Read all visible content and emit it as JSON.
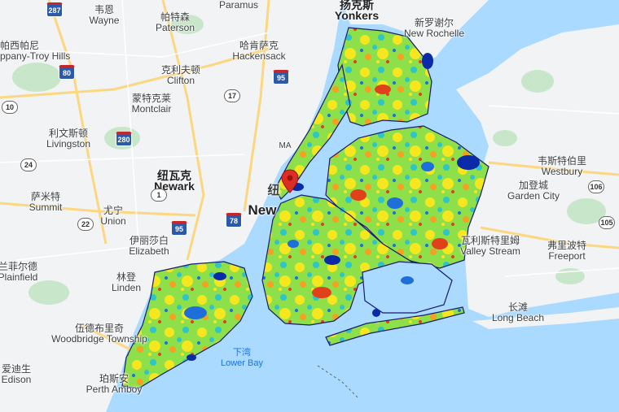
{
  "map": {
    "type": "heatmap-overlay",
    "colors": {
      "water": "#aadaff",
      "land": "#f1f3f4",
      "park": "#c8e6c9",
      "highway": "#fcd77f",
      "road": "#ffffff",
      "marker": "#d93025"
    },
    "heat_colors": [
      "#0a2aa8",
      "#1e6fd9",
      "#2ec4c8",
      "#8ee04a",
      "#f5e61e",
      "#f5a020",
      "#e0401a"
    ],
    "marker_icon": "map-pin-icon"
  },
  "places": [
    {
      "zh": "韦恩",
      "en": "Wayne"
    },
    {
      "zh": "帕特森",
      "en": "Paterson"
    },
    {
      "zh": "",
      "en": "Paramus"
    },
    {
      "zh": "扬克斯",
      "en": "Yonkers"
    },
    {
      "zh": "新罗谢尔",
      "en": "New Rochelle"
    },
    {
      "zh": "哈肯萨克",
      "en": "Hackensack"
    },
    {
      "zh": "克利夫顿",
      "en": "Clifton"
    },
    {
      "zh": "蒙特克莱",
      "en": "Montclair"
    },
    {
      "zh": "利文斯顿",
      "en": "Livingston"
    },
    {
      "zh": "纽瓦克",
      "en": "Newark"
    },
    {
      "zh": "萨米特",
      "en": "Summit"
    },
    {
      "zh": "尤宁",
      "en": "Union"
    },
    {
      "zh": "伊丽莎白",
      "en": "Elizabeth"
    },
    {
      "zh": "林登",
      "en": "Linden"
    },
    {
      "zh": "兰菲尔德",
      "en": "Plainfield"
    },
    {
      "zh": "伍德布里奇",
      "en": "Woodbridge Township"
    },
    {
      "zh": "爱迪生",
      "en": "Edison"
    },
    {
      "zh": "珀斯安",
      "en": "Perth Amboy"
    },
    {
      "zh": "韦斯特伯里",
      "en": "Westbury"
    },
    {
      "zh": "加登城",
      "en": "Garden City"
    },
    {
      "zh": "瓦利斯特里姆",
      "en": "Valley Stream"
    },
    {
      "zh": "弗里波特",
      "en": "Freeport"
    },
    {
      "zh": "长滩",
      "en": "Long Beach"
    },
    {
      "zh": "下湾",
      "en": "Lower Bay"
    },
    {
      "zh": "",
      "en": "New"
    },
    {
      "zh": "",
      "en": "MA"
    },
    {
      "zh": "帕西帕尼",
      "en": "ppany-Troy Hills"
    },
    {
      "zh": "纽",
      "en": ""
    }
  ],
  "shields": [
    "287",
    "80",
    "10",
    "280",
    "24",
    "22",
    "95",
    "78",
    "17",
    "95",
    "106",
    "105",
    "1"
  ]
}
